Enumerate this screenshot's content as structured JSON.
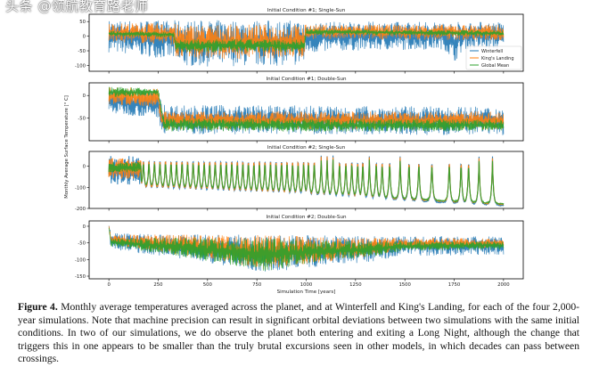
{
  "figure": {
    "ylabel": "Monthly Average Surface Temperature [° C]",
    "xlabel": "Simulation Time [years]",
    "legend": [
      "Winterfell",
      "King's Landing",
      "Global Mean"
    ],
    "colors": {
      "Winterfell": "#1f77b4",
      "King's Landing": "#ff7f0e",
      "Global Mean": "#2ca02c"
    }
  },
  "chart_data": [
    {
      "type": "line",
      "title": "Initial Condition #1; Single-Sun",
      "xlim": [
        -100,
        2100
      ],
      "ylim": [
        -120,
        75
      ],
      "yticks": [
        50,
        0,
        -50,
        -100
      ],
      "xticks": [
        0,
        250,
        500,
        750,
        1000,
        1250,
        1500,
        1750,
        2000
      ],
      "legend_position": "lower-right",
      "series": [
        {
          "name": "Winterfell",
          "envelope": [
            [
              0,
              -55,
              55
            ],
            [
              330,
              -80,
              55
            ],
            [
              340,
              -105,
              55
            ],
            [
              990,
              -100,
              55
            ],
            [
              1000,
              -60,
              50
            ],
            [
              1200,
              -50,
              50
            ],
            [
              1700,
              -45,
              50
            ],
            [
              1750,
              -90,
              50
            ],
            [
              1800,
              -45,
              50
            ],
            [
              2000,
              -45,
              50
            ]
          ]
        },
        {
          "name": "King's Landing",
          "envelope": [
            [
              0,
              -20,
              45
            ],
            [
              330,
              -30,
              45
            ],
            [
              340,
              -80,
              40
            ],
            [
              990,
              -75,
              40
            ],
            [
              1000,
              -10,
              40
            ],
            [
              2000,
              -15,
              40
            ]
          ]
        },
        {
          "name": "Global Mean",
          "envelope": [
            [
              0,
              0,
              18
            ],
            [
              330,
              -5,
              15
            ],
            [
              340,
              -55,
              -10
            ],
            [
              990,
              -55,
              -10
            ],
            [
              1000,
              5,
              25
            ],
            [
              2000,
              0,
              20
            ]
          ]
        }
      ]
    },
    {
      "type": "line",
      "title": "Initial Condition #1; Double-Sun",
      "xlim": [
        -100,
        2100
      ],
      "ylim": [
        -100,
        28
      ],
      "yticks": [
        0,
        -50
      ],
      "xticks": [
        0,
        250,
        500,
        750,
        1000,
        1250,
        1500,
        1750,
        2000
      ],
      "series": [
        {
          "name": "Winterfell",
          "envelope": [
            [
              0,
              -40,
              15
            ],
            [
              250,
              -50,
              10
            ],
            [
              270,
              -85,
              -20
            ],
            [
              2000,
              -88,
              -25
            ]
          ]
        },
        {
          "name": "King's Landing",
          "envelope": [
            [
              0,
              -20,
              20
            ],
            [
              250,
              -25,
              15
            ],
            [
              270,
              -75,
              -35
            ],
            [
              2000,
              -75,
              -35
            ]
          ]
        },
        {
          "name": "Global Mean",
          "envelope": [
            [
              0,
              -5,
              20
            ],
            [
              250,
              0,
              15
            ],
            [
              280,
              -80,
              -50
            ],
            [
              2000,
              -80,
              -52
            ]
          ]
        }
      ]
    },
    {
      "type": "line",
      "title": "Initial Condition #2; Single-Sun",
      "xlim": [
        -100,
        2100
      ],
      "ylim": [
        -200,
        70
      ],
      "yticks": [
        0,
        -100,
        -200
      ],
      "xticks": [
        0,
        250,
        500,
        750,
        1000,
        1250,
        1500,
        1750,
        2000
      ],
      "peaks_start": 165,
      "peaks": [
        175,
        203,
        231,
        259,
        287,
        315,
        343,
        371,
        399,
        427,
        455,
        483,
        511,
        539,
        567,
        595,
        623,
        651,
        679,
        707,
        735,
        763,
        791,
        819,
        847,
        875,
        903,
        931,
        959,
        987,
        1011,
        1041,
        1076,
        1106,
        1136,
        1169,
        1201,
        1231,
        1261,
        1287,
        1320,
        1355,
        1385,
        1423,
        1476,
        1521,
        1571,
        1637,
        1725,
        1785,
        1823,
        1876,
        1944
      ],
      "series": [
        {
          "name": "Winterfell",
          "envelope": [
            [
              0,
              -90,
              50
            ],
            [
              160,
              -90,
              50
            ],
            [
              165,
              -110,
              50
            ],
            [
              1000,
              -140,
              50
            ],
            [
              2000,
              -185,
              45
            ]
          ]
        },
        {
          "name": "King's Landing",
          "envelope": [
            [
              0,
              -60,
              40
            ],
            [
              160,
              -60,
              40
            ],
            [
              165,
              -105,
              45
            ],
            [
              1000,
              -135,
              45
            ],
            [
              2000,
              -180,
              40
            ]
          ]
        },
        {
          "name": "Global Mean",
          "envelope": [
            [
              0,
              -30,
              20
            ],
            [
              160,
              -30,
              20
            ],
            [
              165,
              -95,
              30
            ],
            [
              1000,
              -130,
              30
            ],
            [
              2000,
              -178,
              25
            ]
          ]
        }
      ]
    },
    {
      "type": "line",
      "title": "Initial Condition #2; Double-Sun",
      "xlim": [
        -100,
        2100
      ],
      "ylim": [
        -158,
        16
      ],
      "yticks": [
        0,
        -50,
        -100,
        -150
      ],
      "xticks": [
        0,
        250,
        500,
        750,
        1000,
        1250,
        1500,
        1750,
        2000
      ],
      "series": [
        {
          "name": "Winterfell",
          "envelope": [
            [
              0,
              0,
              5
            ],
            [
              10,
              -70,
              -20
            ],
            [
              400,
              -100,
              -25
            ],
            [
              800,
              -140,
              -25
            ],
            [
              1000,
              -125,
              -25
            ],
            [
              1300,
              -110,
              -30
            ],
            [
              1500,
              -90,
              -30
            ],
            [
              2000,
              -85,
              -30
            ]
          ]
        },
        {
          "name": "King's Landing",
          "envelope": [
            [
              0,
              0,
              5
            ],
            [
              10,
              -55,
              -25
            ],
            [
              400,
              -90,
              -25
            ],
            [
              800,
              -130,
              -25
            ],
            [
              1000,
              -115,
              -30
            ],
            [
              1300,
              -95,
              -35
            ],
            [
              1500,
              -70,
              -35
            ],
            [
              2000,
              -65,
              -35
            ]
          ]
        },
        {
          "name": "Global Mean",
          "envelope": [
            [
              0,
              -5,
              0
            ],
            [
              10,
              -60,
              -35
            ],
            [
              400,
              -95,
              -35
            ],
            [
              800,
              -135,
              -35
            ],
            [
              1000,
              -115,
              -40
            ],
            [
              1300,
              -95,
              -45
            ],
            [
              1500,
              -75,
              -45
            ],
            [
              2000,
              -70,
              -45
            ]
          ]
        }
      ]
    }
  ],
  "caption": {
    "label": "Figure 4.",
    "text": "Monthly average temperatures averaged across the planet, and at Winterfell and King's Landing, for each of the four 2,000-year simulations. Note that machine precision can result in significant orbital deviations between two simulations with the same initial conditions. In two of our simulations, we do observe the planet both entering and exiting a Long Night, although the change that triggers this in one appears to be smaller than the truly brutal excursions seen in other models, in which decades can pass between crossings."
  },
  "watermark": "头条 @领航教育路老师"
}
